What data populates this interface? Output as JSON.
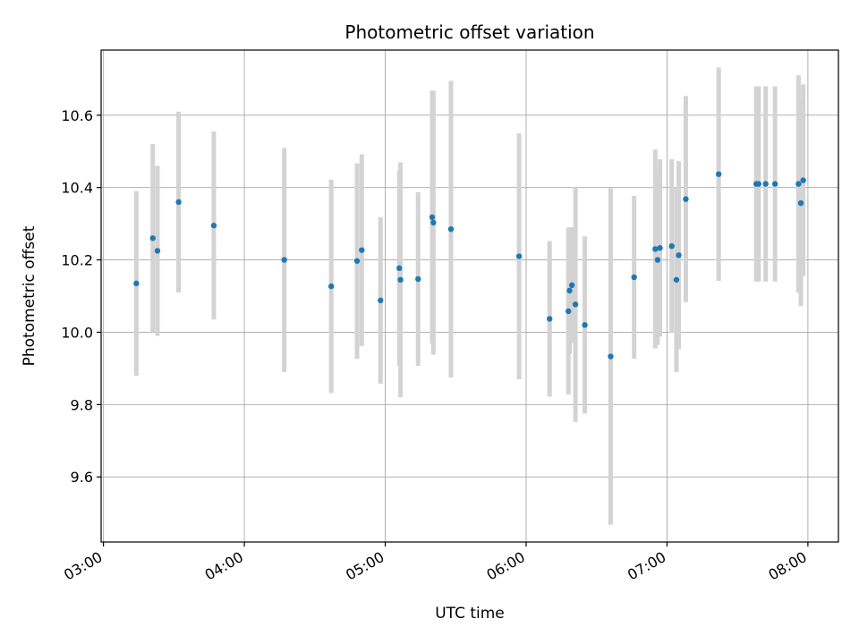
{
  "chart_data": {
    "type": "scatter",
    "title": "Photometric offset variation",
    "xlabel": "UTC time",
    "ylabel": "Photometric offset",
    "x_ticks": [
      "03:00",
      "04:00",
      "05:00",
      "06:00",
      "07:00",
      "08:00"
    ],
    "y_ticks": [
      "9.6",
      "9.8",
      "10.0",
      "10.2",
      "10.4",
      "10.6"
    ],
    "y_tick_values": [
      9.6,
      9.8,
      10.0,
      10.2,
      10.4,
      10.6
    ],
    "xlim": [
      "02:59:00",
      "08:13:00"
    ],
    "ylim": [
      9.42,
      10.78
    ],
    "grid": true,
    "colors": {
      "points": "#1f77b4",
      "error_bars": "#d3d3d3",
      "grid": "#b0b0b0"
    },
    "points": [
      {
        "x": "03:14:00",
        "y": 10.135,
        "yerr": 0.255
      },
      {
        "x": "03:21:00",
        "y": 10.26,
        "yerr": 0.26
      },
      {
        "x": "03:23:00",
        "y": 10.225,
        "yerr": 0.235
      },
      {
        "x": "03:32:00",
        "y": 10.36,
        "yerr": 0.25
      },
      {
        "x": "03:47:00",
        "y": 10.295,
        "yerr": 0.26
      },
      {
        "x": "04:17:00",
        "y": 10.2,
        "yerr": 0.31
      },
      {
        "x": "04:37:00",
        "y": 10.127,
        "yerr": 0.295
      },
      {
        "x": "04:48:00",
        "y": 10.197,
        "yerr": 0.27
      },
      {
        "x": "04:50:00",
        "y": 10.227,
        "yerr": 0.265
      },
      {
        "x": "04:58:00",
        "y": 10.088,
        "yerr": 0.23
      },
      {
        "x": "05:06:00",
        "y": 10.177,
        "yerr": 0.27
      },
      {
        "x": "05:06:30",
        "y": 10.145,
        "yerr": 0.325
      },
      {
        "x": "05:14:00",
        "y": 10.147,
        "yerr": 0.24
      },
      {
        "x": "05:20:00",
        "y": 10.318,
        "yerr": 0.35
      },
      {
        "x": "05:20:30",
        "y": 10.303,
        "yerr": 0.365
      },
      {
        "x": "05:28:00",
        "y": 10.285,
        "yerr": 0.41
      },
      {
        "x": "05:57:00",
        "y": 10.21,
        "yerr": 0.34
      },
      {
        "x": "06:10:00",
        "y": 10.037,
        "yerr": 0.215
      },
      {
        "x": "06:18:00",
        "y": 10.058,
        "yerr": 0.23
      },
      {
        "x": "06:18:30",
        "y": 10.115,
        "yerr": 0.175
      },
      {
        "x": "06:19:30",
        "y": 10.13,
        "yerr": 0.16
      },
      {
        "x": "06:21:00",
        "y": 10.077,
        "yerr": 0.325
      },
      {
        "x": "06:25:00",
        "y": 10.02,
        "yerr": 0.245
      },
      {
        "x": "06:36:00",
        "y": 9.933,
        "yerr": 0.465
      },
      {
        "x": "06:46:00",
        "y": 10.152,
        "yerr": 0.225
      },
      {
        "x": "06:55:00",
        "y": 10.23,
        "yerr": 0.275
      },
      {
        "x": "06:56:00",
        "y": 10.2,
        "yerr": 0.235
      },
      {
        "x": "06:57:00",
        "y": 10.233,
        "yerr": 0.245
      },
      {
        "x": "07:02:00",
        "y": 10.238,
        "yerr": 0.24
      },
      {
        "x": "07:04:00",
        "y": 10.145,
        "yerr": 0.255
      },
      {
        "x": "07:05:00",
        "y": 10.213,
        "yerr": 0.26
      },
      {
        "x": "07:08:00",
        "y": 10.368,
        "yerr": 0.285
      },
      {
        "x": "07:22:00",
        "y": 10.437,
        "yerr": 0.295
      },
      {
        "x": "07:38:00",
        "y": 10.41,
        "yerr": 0.27
      },
      {
        "x": "07:39:00",
        "y": 10.41,
        "yerr": 0.27
      },
      {
        "x": "07:42:00",
        "y": 10.41,
        "yerr": 0.27
      },
      {
        "x": "07:46:00",
        "y": 10.41,
        "yerr": 0.27
      },
      {
        "x": "07:56:00",
        "y": 10.41,
        "yerr": 0.3
      },
      {
        "x": "07:57:00",
        "y": 10.357,
        "yerr": 0.285
      },
      {
        "x": "07:58:00",
        "y": 10.42,
        "yerr": 0.265
      }
    ]
  }
}
